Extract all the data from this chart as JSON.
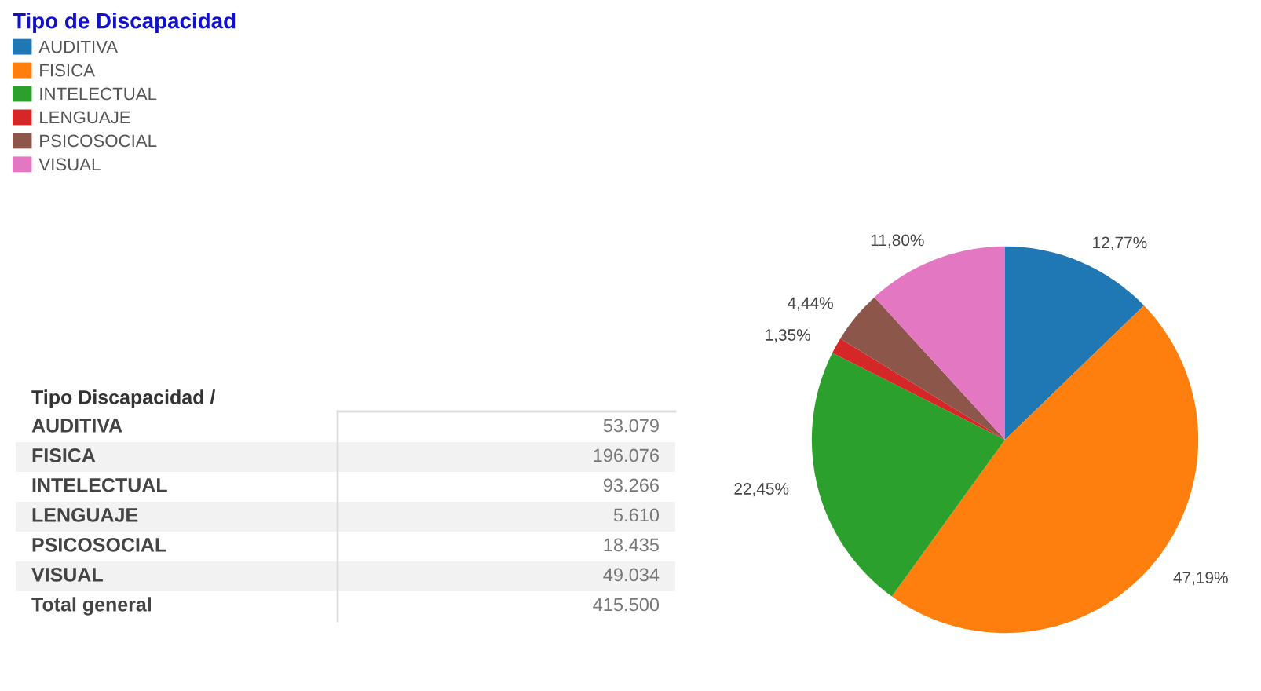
{
  "chart_data": [
    {
      "type": "pie",
      "legend_title": "Tipo de Discapacidad",
      "legend": "top left",
      "categories": [
        "AUDITIVA",
        "FISICA",
        "INTELECTUAL",
        "LENGUAJE",
        "PSICOSOCIAL",
        "VISUAL"
      ],
      "values": [
        12.77,
        47.19,
        22.45,
        1.35,
        4.44,
        11.8
      ],
      "colors": [
        "#1f77b4",
        "#ff7f0e",
        "#2ca02c",
        "#d62728",
        "#8c564b",
        "#e377c2"
      ],
      "value_labels": [
        "12,77%",
        "47,19%",
        "22,45%",
        "1,35%",
        "4,44%",
        "11,80%"
      ]
    },
    {
      "type": "other",
      "title": "Tipo Discapacidad /",
      "categories": [
        "AUDITIVA",
        "FISICA",
        "INTELECTUAL",
        "LENGUAJE",
        "PSICOSOCIAL",
        "VISUAL",
        "Total general"
      ],
      "values": [
        53079,
        196076,
        93266,
        5610,
        18435,
        49034,
        415500
      ],
      "value_labels": [
        "53.079",
        "196.076",
        "93.266",
        "5.610",
        "18.435",
        "49.034",
        "415.500"
      ]
    }
  ]
}
